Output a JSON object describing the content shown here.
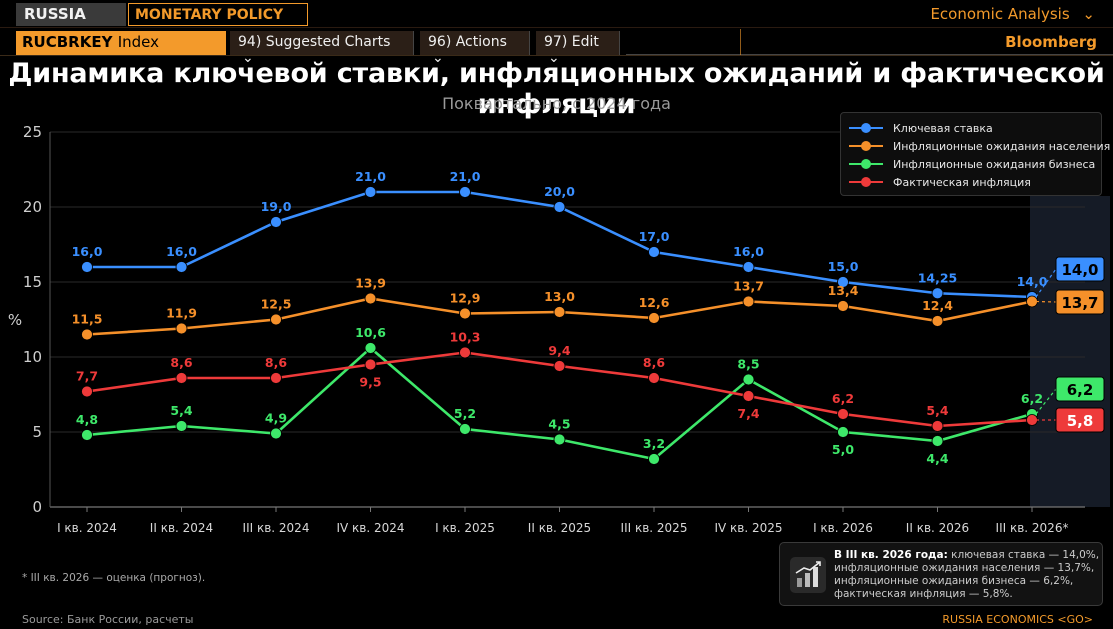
{
  "terminal": {
    "country_tag": "RUSSIA",
    "section_tag": "MONETARY POLICY",
    "economic_analysis": "Economic Analysis",
    "ticker": "RUCBRKEY",
    "ticker_suffix": "Index",
    "menu": [
      "94) Suggested Charts",
      "96) Actions",
      "97) Edit"
    ],
    "brand": "Bloomberg"
  },
  "colors": {
    "accent": "#f39a2b",
    "key_rate": "#3a8fff",
    "household": "#f5902a",
    "business": "#3ee86a",
    "inflation": "#ee3a3a"
  },
  "chart_data": {
    "type": "line",
    "title": "Динамика ключевой ставки, инфляционных ожиданий и  фактической инфляции",
    "subtitle": "Поквартально, с 2024 года",
    "ylabel": "%",
    "ylim": [
      0,
      25
    ],
    "yticks": [
      0,
      5,
      10,
      15,
      20,
      25
    ],
    "grid": "horizontal",
    "legend_position": "top-right",
    "categories": [
      "I кв. 2024",
      "II кв. 2024",
      "III кв. 2024",
      "IV кв. 2024",
      "I кв. 2025",
      "II кв. 2025",
      "III кв. 2025",
      "IV кв. 2025",
      "I кв. 2026",
      "II кв. 2026",
      "III кв. 2026*"
    ],
    "series": [
      {
        "name": "Ключевая ставка",
        "color": "#3a8fff",
        "values": [
          16.0,
          16.0,
          19.0,
          21.0,
          21.0,
          20.0,
          17.0,
          16.0,
          15.0,
          14.25,
          14.0
        ],
        "labels": [
          "16,0",
          "16,0",
          "19,0",
          "21,0",
          "21,0",
          "20,0",
          "17,0",
          "16,0",
          "15,0",
          "14,25",
          "14,0"
        ],
        "label_pos": "above",
        "end_badge": "14,0"
      },
      {
        "name": "Инфляционные ожидания населения",
        "color": "#f5902a",
        "values": [
          11.5,
          11.9,
          12.5,
          13.9,
          12.9,
          13.0,
          12.6,
          13.7,
          13.4,
          12.4,
          13.7
        ],
        "labels": [
          "11,5",
          "11,9",
          "12,5",
          "13,9",
          "12,9",
          "13,0",
          "12,6",
          "13,7",
          "13,4",
          "12,4",
          ""
        ],
        "label_pos": "above",
        "end_badge": "13,7"
      },
      {
        "name": "Инфляционные ожидания бизнеса",
        "color": "#3ee86a",
        "values": [
          4.8,
          5.4,
          4.9,
          10.6,
          5.2,
          4.5,
          3.2,
          8.5,
          5.0,
          4.4,
          6.2
        ],
        "labels": [
          "4,8",
          "5,4",
          "4,9",
          "10,6",
          "5,2",
          "4,5",
          "3,2",
          "8,5",
          "5,0",
          "4,4",
          "6,2"
        ],
        "label_pos": [
          "above",
          "above",
          "above",
          "above",
          "above",
          "above",
          "above",
          "above",
          "below",
          "below",
          "above"
        ],
        "end_badge": "6,2"
      },
      {
        "name": "Фактическая инфляция",
        "color": "#ee3a3a",
        "values": [
          7.7,
          8.6,
          8.6,
          9.5,
          10.3,
          9.4,
          8.6,
          7.4,
          6.2,
          5.4,
          5.8
        ],
        "labels": [
          "7,7",
          "8,6",
          "8,6",
          "9,5",
          "10,3",
          "9,4",
          "8,6",
          "7,4",
          "6,2",
          "5,4",
          ""
        ],
        "label_pos": [
          "above",
          "above",
          "above",
          "below",
          "above",
          "above",
          "above",
          "below",
          "above",
          "above",
          "above"
        ],
        "end_badge": "5,8"
      }
    ]
  },
  "footnote": "* III кв. 2026 — оценка (прогноз).",
  "info": {
    "lead": "В III кв. 2026 года:",
    "line1": " ключевая ставка — 14,0%,",
    "line2": "инфляционные ожидания населения — 13,7%,",
    "line3": "инфляционные ожидания бизнеса — 6,2%,",
    "line4": "фактическая инфляция — 5,8%."
  },
  "source": "Source:  Банк России, расчеты",
  "footer_link": "RUSSIA ECONOMICS <GO>"
}
